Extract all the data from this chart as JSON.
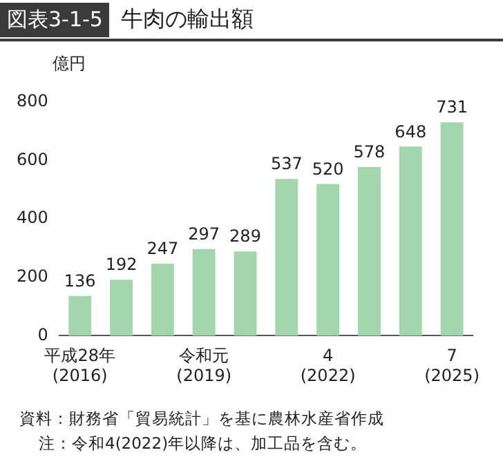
{
  "chart_data": {
    "type": "bar",
    "title": "牛肉の輸出額",
    "ylabel": "億円",
    "categories": [
      "平成28年\n(2016)",
      null,
      null,
      "令和元\n(2019)",
      null,
      null,
      "4\n(2022)",
      null,
      null,
      "7\n(2025)"
    ],
    "values": [
      136,
      192,
      247,
      297,
      289,
      537,
      520,
      578,
      648,
      731
    ],
    "color": "#a3d6ad",
    "ylim": [
      0,
      800
    ],
    "yticks": [
      0,
      200,
      400,
      600,
      800
    ],
    "grid": false,
    "legend": false,
    "data_labels": true,
    "annotations": [
      "図表3-1-5",
      "資料：財務省「貿易統計」を基に農林水産省作成",
      "注：令和4(2022)年以降は、加工品を含む。"
    ]
  }
}
